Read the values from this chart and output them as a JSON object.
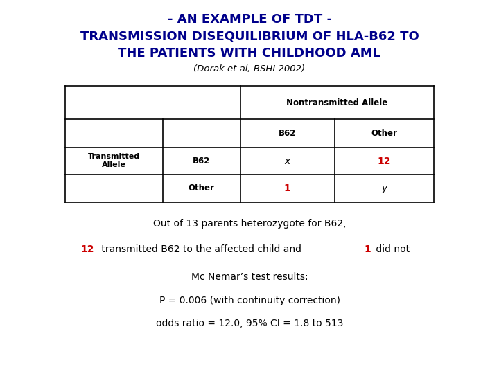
{
  "title_line1": "- AN EXAMPLE OF TDT -",
  "title_line2_a": "TRANSMISSION DISEQUILIBRIUM OF HLA-B62 TO",
  "title_line2_b": "THE PATIENTS WITH CHILDHOOD AML",
  "subtitle": "(Dorak et al, BSHI 2002)",
  "title_color": "#00008B",
  "subtitle_color": "#000000",
  "bg_color": "#FFFFFF",
  "table_header": "Nontransmitted Allele",
  "table_col1": "B62",
  "table_col2": "Other",
  "cell_x": "x",
  "cell_12": "12",
  "cell_1": "1",
  "cell_y": "y",
  "cell_12_color": "#CC0000",
  "cell_1_color": "#CC0000",
  "cell_x_color": "#000000",
  "cell_y_color": "#000000",
  "body_text1": "Out of 13 parents heterozygote for B62,",
  "body_text3": "Mc Nemar’s test results:",
  "body_text4": "P = 0.006 (with continuity correction)",
  "body_text5": "odds ratio = 12.0, 95% CI = 1.8 to 513",
  "body_text_color": "#000000",
  "red_color": "#CC0000",
  "seg1": "12",
  "seg2": " transmitted B62 to the affected child and ",
  "seg3": "1",
  "seg4": " did not"
}
